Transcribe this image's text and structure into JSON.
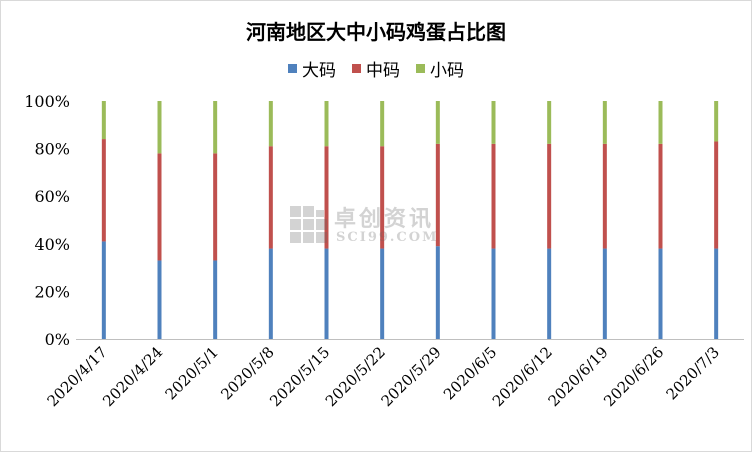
{
  "chart_data": {
    "type": "bar",
    "stacked": "percent",
    "title": "河南地区大中小码鸡蛋占比图",
    "xlabel": "",
    "ylabel": "",
    "ylim": [
      0,
      100
    ],
    "yticks": [
      "0%",
      "20%",
      "40%",
      "60%",
      "80%",
      "100%"
    ],
    "legend_position": "top",
    "grid": false,
    "categories": [
      "2020/4/17",
      "2020/4/24",
      "2020/5/1",
      "2020/5/8",
      "2020/5/15",
      "2020/5/22",
      "2020/5/29",
      "2020/6/5",
      "2020/6/12",
      "2020/6/19",
      "2020/6/26",
      "2020/7/3"
    ],
    "series": [
      {
        "name": "大码",
        "color": "#4F81BD",
        "values": [
          41,
          33,
          33,
          38,
          38,
          38,
          39,
          38,
          38,
          38,
          38,
          38
        ]
      },
      {
        "name": "中码",
        "color": "#C0504D",
        "values": [
          43,
          45,
          45,
          43,
          43,
          43,
          43,
          44,
          44,
          44,
          44,
          45
        ]
      },
      {
        "name": "小码",
        "color": "#9BBB59",
        "values": [
          16,
          22,
          22,
          19,
          19,
          19,
          18,
          18,
          18,
          18,
          18,
          17
        ]
      }
    ]
  },
  "watermark": {
    "text_cn": "卓创资讯",
    "text_en": "SCI99.COM",
    "logo": "sci99-logo-icon"
  }
}
